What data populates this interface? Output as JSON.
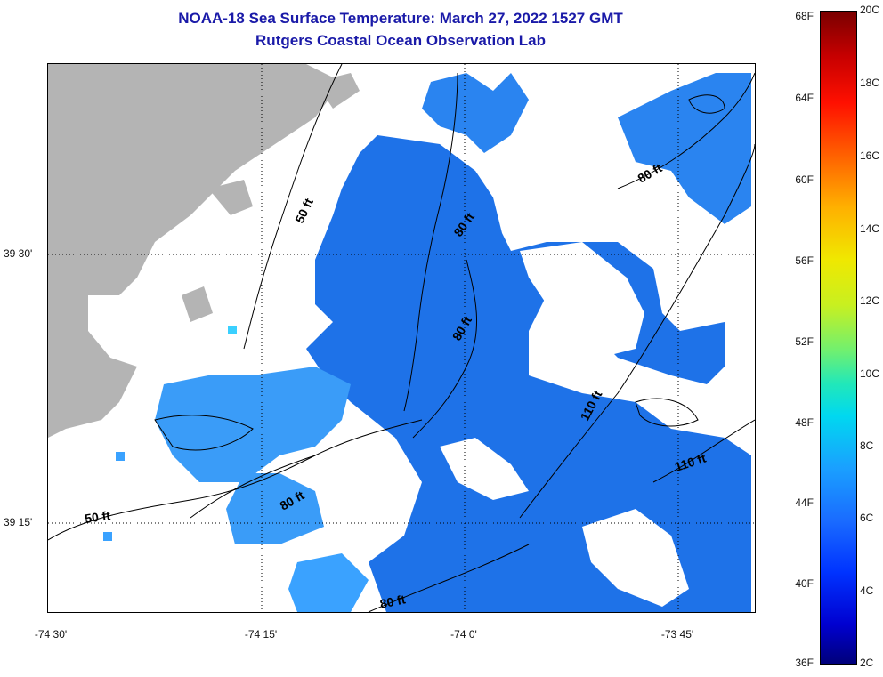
{
  "title": {
    "line1": "NOAA-18 Sea Surface Temperature:  March 27, 2022 1527 GMT",
    "line2": "Rutgers Coastal Ocean Observation Lab"
  },
  "lat_labels": [
    "39 30'",
    "39 15'"
  ],
  "lon_labels": [
    "-74 30'",
    "-74 15'",
    "-74 0'",
    "-73 45'"
  ],
  "depth_labels": [
    "50 ft",
    "50 ft",
    "80 ft",
    "80 ft",
    "80 ft",
    "80 ft",
    "80 ft",
    "110 ft",
    "110 ft"
  ],
  "colorbar": {
    "fahrenheit": [
      "68F",
      "64F",
      "60F",
      "56F",
      "52F",
      "48F",
      "44F",
      "40F",
      "36F"
    ],
    "celsius": [
      "20C",
      "18C",
      "16C",
      "14C",
      "12C",
      "10C",
      "8C",
      "6C",
      "4C",
      "2C"
    ]
  },
  "colors": {
    "title": "#1a1aa8",
    "land": "#b4b4b4",
    "sst_dark": "#1e6ee6",
    "sst_light": "#3aa0ff"
  }
}
